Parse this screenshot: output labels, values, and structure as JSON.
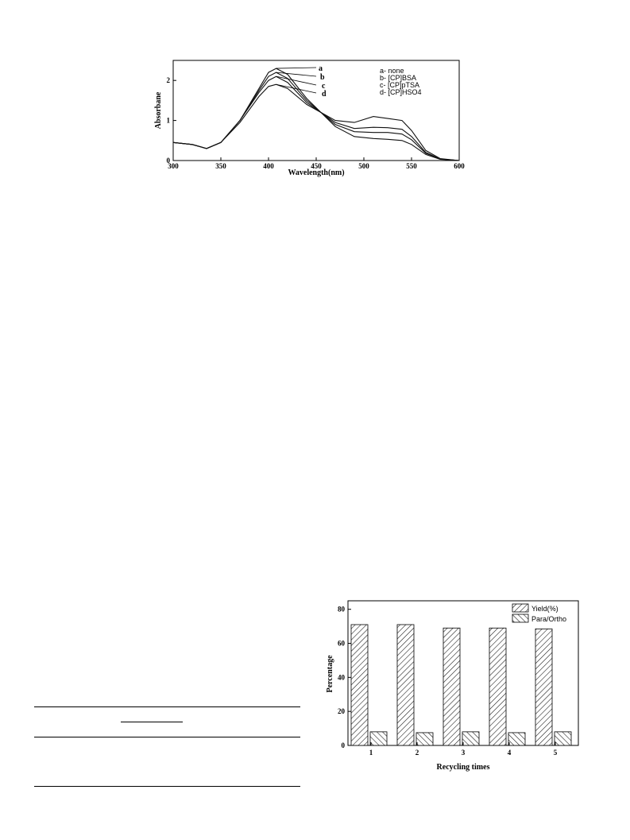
{
  "chart_data": [
    {
      "type": "line",
      "title": "",
      "xlabel": "Wavelength(nm)",
      "ylabel": "Absorbane",
      "xlim": [
        300,
        600
      ],
      "ylim": [
        0,
        2.5
      ],
      "x_ticks": [
        300,
        350,
        400,
        450,
        500,
        550,
        600
      ],
      "y_ticks": [
        0,
        1,
        2
      ],
      "grid": false,
      "legend_position": "top-right",
      "legend": [
        "a- none",
        "b- [CP]BSA",
        "c- [CP]pTSA",
        "d- [CP]HSO4"
      ],
      "curve_labels": [
        "a",
        "b",
        "c",
        "d"
      ],
      "series": [
        {
          "name": "a",
          "x": [
            300,
            320,
            335,
            350,
            370,
            390,
            400,
            408,
            420,
            440,
            455,
            470,
            490,
            510,
            525,
            540,
            550,
            565,
            580,
            600
          ],
          "y": [
            0.45,
            0.4,
            0.3,
            0.45,
            1.0,
            1.8,
            2.2,
            2.3,
            2.15,
            1.55,
            1.2,
            1.0,
            0.95,
            1.1,
            1.05,
            1.0,
            0.75,
            0.25,
            0.05,
            0.0
          ]
        },
        {
          "name": "b",
          "x": [
            300,
            320,
            335,
            350,
            370,
            390,
            400,
            408,
            420,
            440,
            455,
            470,
            490,
            510,
            525,
            540,
            550,
            565,
            580,
            600
          ],
          "y": [
            0.45,
            0.4,
            0.3,
            0.45,
            1.0,
            1.75,
            2.1,
            2.2,
            2.05,
            1.5,
            1.2,
            0.95,
            0.8,
            0.83,
            0.82,
            0.78,
            0.6,
            0.2,
            0.04,
            0.0
          ]
        },
        {
          "name": "c",
          "x": [
            300,
            320,
            335,
            350,
            370,
            390,
            400,
            408,
            420,
            440,
            455,
            470,
            490,
            510,
            525,
            540,
            550,
            565,
            580,
            600
          ],
          "y": [
            0.45,
            0.4,
            0.3,
            0.45,
            1.0,
            1.7,
            2.0,
            2.1,
            1.95,
            1.45,
            1.2,
            0.9,
            0.72,
            0.7,
            0.7,
            0.66,
            0.52,
            0.18,
            0.04,
            0.0
          ]
        },
        {
          "name": "d",
          "x": [
            300,
            320,
            335,
            350,
            370,
            390,
            400,
            408,
            420,
            440,
            455,
            470,
            490,
            510,
            525,
            540,
            550,
            565,
            580,
            600
          ],
          "y": [
            0.45,
            0.4,
            0.3,
            0.45,
            0.95,
            1.6,
            1.85,
            1.9,
            1.8,
            1.4,
            1.2,
            0.85,
            0.6,
            0.55,
            0.53,
            0.5,
            0.4,
            0.15,
            0.03,
            0.0
          ]
        }
      ]
    },
    {
      "type": "bar",
      "title": "",
      "xlabel": "Recycling times",
      "ylabel": "Percentage",
      "categories": [
        "1",
        "2",
        "3",
        "4",
        "5"
      ],
      "ylim": [
        0,
        85
      ],
      "y_ticks": [
        0,
        20,
        40,
        60,
        80
      ],
      "grid": false,
      "legend_position": "top-right",
      "series": [
        {
          "name": "Yield(%)",
          "values": [
            71,
            71,
            69,
            69,
            68.5
          ]
        },
        {
          "name": "Para/Ortho",
          "values": [
            8,
            7.5,
            8,
            7.5,
            8
          ]
        }
      ]
    }
  ],
  "colors": {
    "line": "#111111",
    "hatch": "#111111",
    "background": "#ffffff"
  }
}
